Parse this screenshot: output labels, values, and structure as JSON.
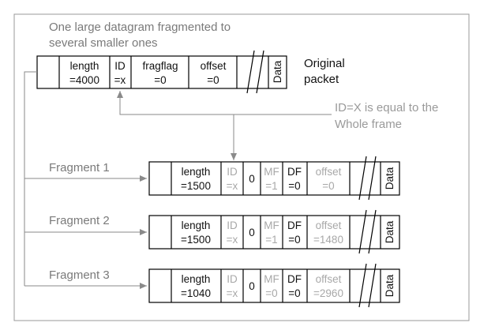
{
  "title_line1": "One large datagram fragmented to",
  "title_line2": "several smaller ones",
  "original": {
    "label_line1": "Original",
    "label_line2": "packet",
    "length_name": "length",
    "length_value": "=4000",
    "id_name": "ID",
    "id_value": "=x",
    "fragflag_name": "fragflag",
    "fragflag_value": "=0",
    "offset_name": "offset",
    "offset_value": "=0",
    "data": "Data"
  },
  "note_line1": "ID=X is equal to the",
  "note_line2": "Whole frame",
  "fragments": [
    {
      "label": "Fragment 1",
      "length_name": "length",
      "length_value": "=1500",
      "id_name": "ID",
      "id_value": "=x",
      "zero": "0",
      "mf_name": "MF",
      "mf_value": "=1",
      "df_name": "DF",
      "df_value": "=0",
      "offset_name": "offset",
      "offset_value": "=0",
      "data": "Data"
    },
    {
      "label": "Fragment 2",
      "length_name": "length",
      "length_value": "=1500",
      "id_name": "ID",
      "id_value": "=x",
      "zero": "0",
      "mf_name": "MF",
      "mf_value": "=1",
      "df_name": "DF",
      "df_value": "=0",
      "offset_name": "offset",
      "offset_value": "=1480",
      "data": "Data"
    },
    {
      "label": "Fragment 3",
      "length_name": "length",
      "length_value": "=1040",
      "id_name": "ID",
      "id_value": "=x",
      "zero": "0",
      "mf_name": "MF",
      "mf_value": "=0",
      "df_name": "DF",
      "df_value": "=0",
      "offset_name": "offset",
      "offset_value": "=2960",
      "data": "Data"
    }
  ],
  "colors": {
    "line": "#000000",
    "arrow": "#8a8a8a",
    "grey_text": "#a8a8a8"
  }
}
